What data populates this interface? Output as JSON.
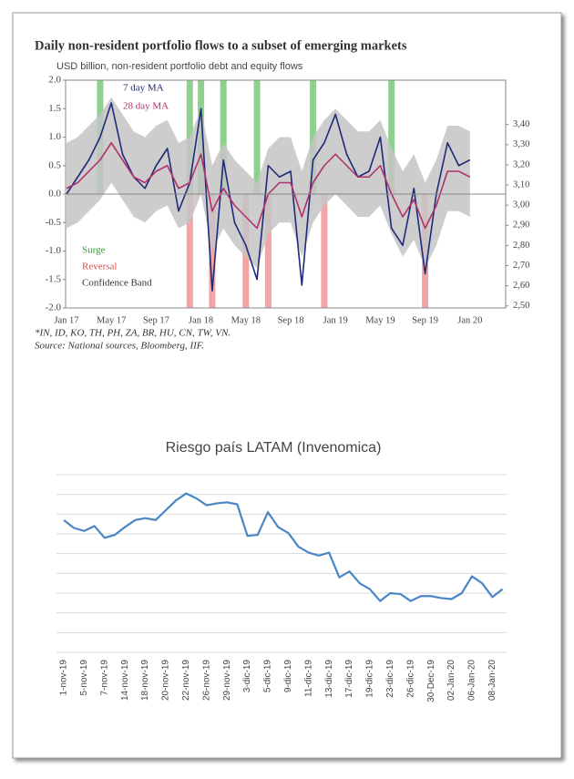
{
  "chart_data": [
    {
      "type": "line",
      "title": "Daily non-resident portfolio flows to a subset of emerging markets",
      "subtitle": "USD billion, non-resident portfolio debt and equity flows",
      "notes": [
        "*IN, ID, KO, TH, PH, ZA, BR, HU, CN, TW, VN.",
        "Source: National sources, Bloomberg, IIF."
      ],
      "categories": [
        "Jan 17",
        null,
        null,
        null,
        "May 17",
        null,
        null,
        null,
        "Sep 17",
        null,
        null,
        null,
        "Jan 18",
        null,
        null,
        null,
        "May 18",
        null,
        null,
        null,
        "Sep 18",
        null,
        null,
        null,
        "Jan 19",
        null,
        null,
        null,
        "May 19",
        null,
        null,
        null,
        "Sep 19",
        null,
        null,
        null,
        "Jan 20"
      ],
      "series": [
        {
          "name": "Surge",
          "kind": "bar",
          "color": "#8fd08f",
          "values": [
            null,
            null,
            null,
            2,
            null,
            null,
            null,
            null,
            null,
            null,
            null,
            2,
            2,
            null,
            2,
            null,
            null,
            2,
            null,
            null,
            null,
            null,
            2,
            null,
            null,
            null,
            null,
            null,
            null,
            2,
            null,
            null,
            null,
            null,
            null,
            null,
            null
          ]
        },
        {
          "name": "Reversal",
          "kind": "bar",
          "color": "#f3a5a5",
          "values": [
            null,
            null,
            null,
            null,
            null,
            null,
            null,
            null,
            null,
            null,
            null,
            -2,
            null,
            -2,
            null,
            null,
            -2,
            null,
            -2,
            null,
            null,
            null,
            null,
            -2,
            null,
            null,
            null,
            null,
            null,
            null,
            null,
            null,
            -2,
            null,
            null,
            null,
            null
          ]
        },
        {
          "name": "Confidence Band",
          "kind": "band",
          "color": "#c4c4c4",
          "upper": [
            0.9,
            1.0,
            1.2,
            1.4,
            1.7,
            1.4,
            1.1,
            1.0,
            1.2,
            1.3,
            0.9,
            1.0,
            1.5,
            0.5,
            0.9,
            0.6,
            0.4,
            0.2,
            0.8,
            1.0,
            1.0,
            0.4,
            1.0,
            1.3,
            1.5,
            1.3,
            1.1,
            1.1,
            1.3,
            0.8,
            0.4,
            0.7,
            0.2,
            0.6,
            1.2,
            1.2,
            1.1
          ],
          "lower": [
            -0.6,
            -0.5,
            -0.3,
            -0.1,
            0.2,
            -0.1,
            -0.4,
            -0.5,
            -0.3,
            -0.2,
            -0.6,
            -0.5,
            0.0,
            -1.0,
            -0.6,
            -0.9,
            -1.1,
            -1.3,
            -0.7,
            -0.5,
            -0.5,
            -1.1,
            -0.5,
            -0.2,
            0.0,
            -0.2,
            -0.4,
            -0.4,
            -0.2,
            -0.7,
            -1.1,
            -0.8,
            -1.3,
            -0.9,
            -0.3,
            -0.3,
            -0.4
          ]
        },
        {
          "name": "7 day MA",
          "kind": "line",
          "color": "#1f2a78",
          "values": [
            0.0,
            0.3,
            0.6,
            1.0,
            1.6,
            0.7,
            0.3,
            0.1,
            0.5,
            0.8,
            -0.3,
            0.2,
            1.5,
            -1.7,
            0.6,
            -0.5,
            -0.9,
            -1.5,
            0.5,
            0.3,
            0.4,
            -1.6,
            0.6,
            0.9,
            1.4,
            0.7,
            0.3,
            0.4,
            1.0,
            -0.6,
            -0.9,
            0.1,
            -1.4,
            0.0,
            0.9,
            0.5,
            0.6
          ]
        },
        {
          "name": "28 day MA",
          "kind": "line",
          "color": "#b3306c",
          "values": [
            0.1,
            0.2,
            0.4,
            0.6,
            0.9,
            0.6,
            0.3,
            0.2,
            0.4,
            0.5,
            0.1,
            0.2,
            0.7,
            -0.3,
            0.1,
            -0.2,
            -0.4,
            -0.6,
            0.0,
            0.2,
            0.2,
            -0.4,
            0.2,
            0.5,
            0.7,
            0.5,
            0.3,
            0.3,
            0.5,
            0.0,
            -0.4,
            -0.1,
            -0.6,
            -0.2,
            0.4,
            0.4,
            0.3
          ]
        }
      ],
      "ylim": [
        -2,
        2
      ],
      "yticks": [
        {
          "value": 2,
          "label": "2.0"
        },
        1.5,
        {
          "value": 1,
          "label": "1.0"
        },
        0.5,
        {
          "value": 0,
          "label": "0.0"
        },
        -0.5,
        {
          "value": -1,
          "label": "-1.0"
        },
        -1.5,
        {
          "value": -2,
          "label": "-2.0"
        }
      ],
      "y2lim": [
        2.49,
        3.62
      ],
      "y2ticks": [
        {
          "value": 2.5,
          "label": "2,50"
        },
        {
          "value": 2.6,
          "label": "2,60"
        },
        {
          "value": 2.7,
          "label": "2,70"
        },
        {
          "value": 2.8,
          "label": "2,80"
        },
        {
          "value": 2.9,
          "label": "2,90"
        },
        {
          "value": 3.0,
          "label": "3,00"
        },
        {
          "value": 3.1,
          "label": "3,10"
        },
        {
          "value": 3.2,
          "label": "3,20"
        },
        {
          "value": 3.3,
          "label": "3,30"
        },
        {
          "value": 3.4,
          "label": "3,40"
        }
      ],
      "grid": false
    },
    {
      "type": "line",
      "title": "Riesgo país LATAM (Invenomica)",
      "categories": [
        "1-nov-19",
        null,
        "5-nov-19",
        null,
        "7-nov-19",
        null,
        "14-nov-19",
        null,
        "18-nov-19",
        null,
        "20-nov-19",
        null,
        "22-nov-19",
        null,
        "26-nov-19",
        null,
        "29-nov-19",
        null,
        "3-dic-19",
        null,
        "5-dic-19",
        null,
        "9-dic-19",
        null,
        "11-dic-19",
        null,
        "13-dic-19",
        null,
        "17-dic-19",
        null,
        "19-dic-19",
        null,
        "23-dic-19",
        null,
        "26-dic-19",
        null,
        "30-Dec-19",
        null,
        "02-Jan-20",
        null,
        "06-Jan-20",
        null,
        "08-Jan-20",
        null
      ],
      "series": [
        {
          "kind": "line",
          "color": "#4a86c5",
          "values": [
            6.7,
            6.3,
            6.15,
            6.4,
            5.8,
            5.95,
            6.35,
            6.7,
            6.8,
            6.7,
            7.2,
            7.7,
            8.05,
            7.8,
            7.45,
            7.55,
            7.6,
            7.5,
            5.9,
            5.95,
            7.1,
            6.35,
            6.05,
            5.35,
            5.05,
            4.9,
            5.05,
            3.8,
            4.1,
            3.5,
            3.2,
            2.6,
            3.0,
            2.95,
            2.6,
            2.85,
            2.85,
            2.75,
            2.7,
            3.0,
            3.85,
            3.5,
            2.8,
            3.2
          ]
        }
      ],
      "ylim": [
        0,
        9
      ],
      "yticks": [
        1,
        2,
        3,
        4,
        5,
        6,
        7,
        8,
        9
      ],
      "ytick_labels": false,
      "grid": true
    }
  ]
}
